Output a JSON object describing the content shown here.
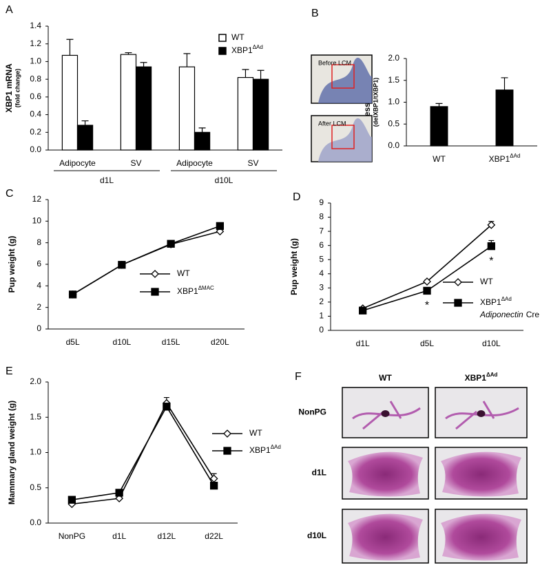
{
  "chart_data": [
    {
      "type": "bar",
      "panel": "A",
      "ylabel": [
        "XBP1 mRNA",
        "(fold change)"
      ],
      "categories": [
        "Adipocyte",
        "SV",
        "Adipocyte",
        "SV"
      ],
      "group_labels": [
        "d1L",
        "d10L"
      ],
      "series": [
        {
          "name": "WT",
          "color": "#ffffff",
          "values": [
            1.07,
            1.08,
            0.94,
            0.82
          ],
          "errors": [
            0.18,
            0.02,
            0.15,
            0.09
          ]
        },
        {
          "name": "XBP1",
          "name_sup": "ΔAd",
          "color": "#000000",
          "values": [
            0.28,
            0.94,
            0.2,
            0.8
          ],
          "errors": [
            0.05,
            0.05,
            0.05,
            0.1
          ]
        }
      ],
      "ylim": [
        0,
        1.4
      ],
      "yticks": [
        {
          "value": 0,
          "label": "0.0"
        },
        0.2,
        0.4,
        0.6,
        0.8,
        {
          "value": 1,
          "label": "1.0"
        },
        1.2,
        1.4
      ]
    },
    {
      "type": "bar",
      "panel": "B",
      "ylabel": [
        "Expression level",
        "(delXBP1/tXBP1)"
      ],
      "image_labels": [
        "Before LCM",
        "After LCM"
      ],
      "categories": [
        "WT",
        "XBP1"
      ],
      "category_sup": [
        null,
        "ΔAd"
      ],
      "series": [
        {
          "color": "#000000",
          "values": [
            0.9,
            1.28
          ],
          "errors": [
            0.07,
            0.28
          ]
        }
      ],
      "ylim": [
        0,
        2
      ],
      "yticks": [
        {
          "value": 0,
          "label": "0.0"
        },
        0.5,
        {
          "value": 1,
          "label": "1.0"
        },
        1.5,
        {
          "value": 2,
          "label": "2.0"
        }
      ]
    },
    {
      "type": "line",
      "panel": "C",
      "ylabel": [
        "Pup weight (g)"
      ],
      "categories": [
        "d5L",
        "d10L",
        "d15L",
        "d20L"
      ],
      "series": [
        {
          "name": "WT",
          "color": "#ffffff",
          "marker": "diamond",
          "values": [
            3.2,
            5.95,
            7.85,
            9.05
          ]
        },
        {
          "name": "XBP1",
          "name_sup": "ΔMAC",
          "color": "#000000",
          "marker": "square",
          "values": [
            3.2,
            5.95,
            7.9,
            9.55
          ]
        }
      ],
      "ylim": [
        0,
        12
      ],
      "yticks": [
        0,
        2,
        4,
        6,
        8,
        10,
        12
      ]
    },
    {
      "type": "line",
      "panel": "D",
      "ylabel": [
        "Pup weight (g)"
      ],
      "categories": [
        "d1L",
        "d5L",
        "d10L"
      ],
      "series": [
        {
          "name": "WT",
          "color": "#ffffff",
          "marker": "diamond",
          "values": [
            1.55,
            3.45,
            7.45
          ],
          "errors": [
            0.1,
            0.1,
            0.25
          ]
        },
        {
          "name": "XBP1",
          "name_sup": "ΔAd",
          "color": "#000000",
          "marker": "square",
          "values": [
            1.4,
            2.8,
            5.95
          ],
          "errors": [
            0.1,
            0.1,
            0.4
          ]
        }
      ],
      "legend_note_italic": "Adiponectin",
      "legend_note": "Cre",
      "annotations": [
        {
          "text": "*",
          "x": "d5L"
        },
        {
          "text": "*",
          "x": "d10L"
        }
      ],
      "ylim": [
        0,
        9
      ],
      "yticks": [
        0,
        1,
        2,
        3,
        4,
        5,
        6,
        7,
        8,
        9
      ]
    },
    {
      "type": "line",
      "panel": "E",
      "ylabel": [
        "Mammary gland weight (g)"
      ],
      "categories": [
        "NonPG",
        "d1L",
        "d12L",
        "d22L"
      ],
      "series": [
        {
          "name": "WT",
          "color": "#ffffff",
          "marker": "diamond",
          "values": [
            0.27,
            0.35,
            1.7,
            0.63
          ],
          "errors": [
            0.02,
            0.02,
            0.08,
            0.07
          ]
        },
        {
          "name": "XBP1",
          "name_sup": "ΔAd",
          "color": "#000000",
          "marker": "square",
          "values": [
            0.33,
            0.43,
            1.65,
            0.53
          ],
          "errors": [
            0.02,
            0.02,
            0.05,
            0.03
          ]
        }
      ],
      "ylim": [
        0,
        2
      ],
      "yticks": [
        {
          "value": 0,
          "label": "0.0"
        },
        0.5,
        {
          "value": 1,
          "label": "1.0"
        },
        1.5,
        {
          "value": 2,
          "label": "2.0"
        }
      ]
    }
  ],
  "panel_f": {
    "panel": "F",
    "columns": [
      "WT",
      "XBP1"
    ],
    "column_sup": [
      null,
      "ΔAd"
    ],
    "rows": [
      "NonPG",
      "d1L",
      "d10L"
    ]
  }
}
